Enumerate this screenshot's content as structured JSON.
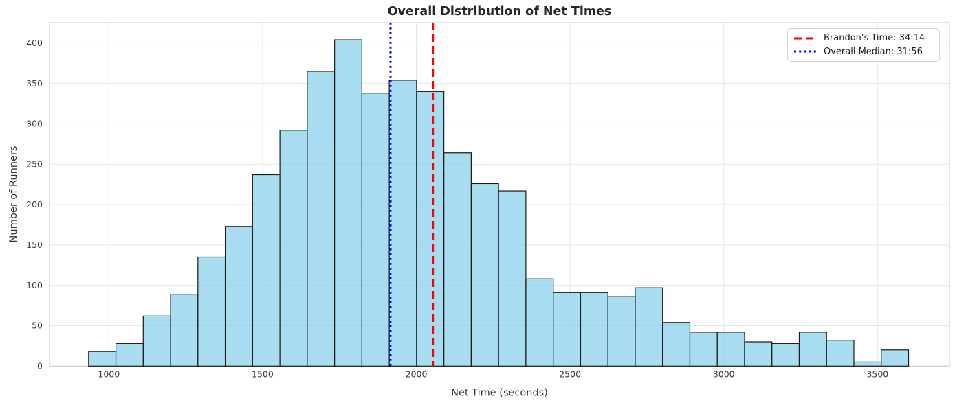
{
  "chart_data": {
    "type": "bar",
    "subtype": "histogram",
    "title": "Overall Distribution of Net Times",
    "xlabel": "Net Time (seconds)",
    "ylabel": "Number of Runners",
    "bin_start_seconds": 934,
    "bin_width_seconds": 88.9,
    "counts": [
      18,
      28,
      62,
      89,
      135,
      173,
      237,
      292,
      365,
      404,
      338,
      354,
      340,
      264,
      226,
      217,
      108,
      91,
      91,
      86,
      97,
      54,
      42,
      42,
      30,
      28,
      42,
      32,
      5,
      20
    ],
    "x_ticks": [
      1000,
      1500,
      2000,
      2500,
      3000,
      3500
    ],
    "y_ticks": [
      0,
      50,
      100,
      150,
      200,
      250,
      300,
      350,
      400
    ],
    "xlim": [
      807,
      3734
    ],
    "ylim": [
      0,
      425.3
    ],
    "grid": true,
    "legend_position": "upper right",
    "vlines": [
      {
        "name": "brandon-time-line",
        "label": "Brandon's Time: 34:14",
        "x_seconds": 2054,
        "color": "#ff0000",
        "style": "dashed"
      },
      {
        "name": "overall-median-line",
        "label": "Overall Median: 31:56",
        "x_seconds": 1916,
        "color": "#0000ff",
        "style": "dotted"
      }
    ],
    "colors": {
      "bar_fill": "#87CEEB",
      "bar_fill_opacity": 0.72,
      "bar_edge": "#1a1a1a",
      "grid": "#e7e7e7",
      "spine": "#cfcfcf",
      "tick_text": "#3d3d3d",
      "title_text": "#262626",
      "axis_label_text": "#333333",
      "legend_border": "#d2d2d2",
      "legend_text": "#1a1a1a",
      "background": "#ffffff"
    }
  }
}
